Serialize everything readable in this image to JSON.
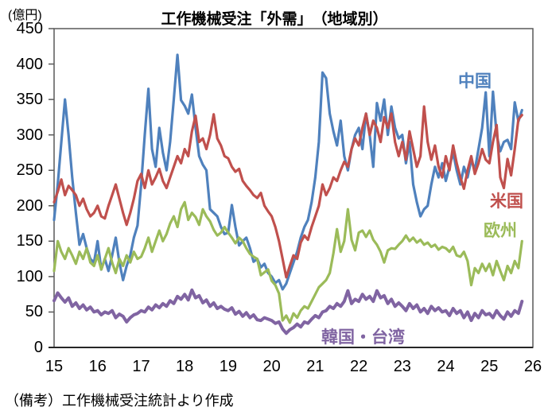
{
  "page": {
    "unit_label": "(億円)",
    "note": "（備考）工作機械受注統計より作成"
  },
  "chart_data": {
    "type": "line",
    "title": "工作機械受注「外需」　（地域別）",
    "unit": "(億円)",
    "ylim": [
      0,
      450
    ],
    "yticks": [
      0,
      50,
      100,
      150,
      200,
      250,
      300,
      350,
      400,
      450
    ],
    "x_tick_labels": [
      "15",
      "16",
      "17",
      "18",
      "19",
      "20",
      "21",
      "22",
      "23",
      "24",
      "25",
      "26"
    ],
    "x_axis_total_months": 132,
    "frequency": "monthly",
    "grid": false,
    "legend": "inline-annotations",
    "annotation_note": "（備考）工作機械受注統計より作成",
    "series": [
      {
        "name": "china",
        "label": "中国",
        "color": "#4F81BD",
        "values": [
          180,
          230,
          290,
          350,
          300,
          240,
          190,
          145,
          160,
          140,
          125,
          120,
          150,
          110,
          125,
          108,
          130,
          155,
          120,
          95,
          115,
          130,
          155,
          172,
          230,
          300,
          365,
          280,
          255,
          310,
          275,
          250,
          290,
          350,
          413,
          349,
          341,
          330,
          357,
          310,
          270,
          258,
          250,
          195,
          190,
          185,
          170,
          160,
          162,
          201,
          170,
          144,
          150,
          155,
          140,
          121,
          125,
          113,
          118,
          105,
          100,
          91,
          95,
          82,
          90,
          105,
          120,
          135,
          155,
          170,
          180,
          205,
          240,
          290,
          388,
          380,
          330,
          305,
          285,
          320,
          270,
          250,
          280,
          300,
          310,
          280,
          330,
          300,
          255,
          345,
          320,
          350,
          300,
          340,
          310,
          295,
          300,
          260,
          290,
          230,
          205,
          185,
          195,
          200,
          230,
          255,
          240,
          260,
          235,
          255,
          275,
          250,
          230,
          255,
          240,
          265,
          250,
          280,
          310,
          360,
          270,
          361,
          300,
          277,
          290,
          293,
          280,
          346,
          319,
          335
        ]
      },
      {
        "name": "usa",
        "label": "米国",
        "color": "#C0504D",
        "values": [
          205,
          220,
          237,
          215,
          228,
          222,
          215,
          200,
          210,
          195,
          185,
          190,
          200,
          185,
          182,
          200,
          215,
          230,
          210,
          190,
          173,
          190,
          210,
          235,
          245,
          225,
          250,
          230,
          240,
          252,
          235,
          225,
          240,
          255,
          270,
          260,
          280,
          270,
          305,
          327,
          290,
          295,
          280,
          300,
          329,
          295,
          285,
          270,
          267,
          255,
          248,
          252,
          235,
          228,
          222,
          215,
          211,
          218,
          200,
          192,
          185,
          170,
          150,
          125,
          99,
          115,
          130,
          125,
          148,
          158,
          152,
          170,
          185,
          200,
          230,
          215,
          225,
          240,
          235,
          250,
          262,
          255,
          280,
          295,
          285,
          310,
          330,
          300,
          320,
          310,
          290,
          325,
          310,
          330,
          290,
          270,
          290,
          265,
          305,
          280,
          255,
          270,
          340,
          290,
          265,
          285,
          255,
          240,
          270,
          250,
          285,
          260,
          240,
          224,
          250,
          270,
          245,
          260,
          280,
          265,
          260,
          290,
          314,
          240,
          225,
          266,
          243,
          280,
          322,
          328
        ]
      },
      {
        "name": "europe",
        "label": "欧州",
        "color": "#9BBB59",
        "values": [
          108,
          150,
          135,
          125,
          140,
          130,
          118,
          135,
          125,
          140,
          120,
          115,
          130,
          110,
          125,
          140,
          120,
          105,
          125,
          115,
          130,
          120,
          135,
          125,
          128,
          140,
          155,
          135,
          150,
          165,
          150,
          160,
          175,
          185,
          170,
          195,
          205,
          180,
          190,
          184,
          173,
          195,
          185,
          178,
          166,
          158,
          162,
          170,
          162,
          155,
          147,
          155,
          150,
          140,
          132,
          128,
          125,
          102,
          106,
          110,
          94,
          88,
          76,
          38,
          45,
          35,
          48,
          42,
          52,
          58,
          55,
          65,
          75,
          85,
          90,
          95,
          105,
          133,
          167,
          135,
          150,
          195,
          152,
          137,
          162,
          165,
          156,
          165,
          152,
          145,
          135,
          120,
          137,
          140,
          139,
          145,
          150,
          158,
          150,
          155,
          148,
          152,
          145,
          148,
          142,
          145,
          138,
          142,
          140,
          135,
          142,
          130,
          128,
          135,
          122,
          88,
          112,
          105,
          118,
          108,
          118,
          102,
          122,
          108,
          95,
          115,
          105,
          122,
          112,
          150
        ]
      },
      {
        "name": "korea-taiwan",
        "label": "韓国・台湾",
        "color": "#8064A2",
        "values": [
          66,
          77,
          70,
          64,
          70,
          58,
          63,
          55,
          60,
          53,
          57,
          50,
          52,
          46,
          50,
          48,
          52,
          42,
          47,
          44,
          36,
          42,
          46,
          48,
          52,
          50,
          57,
          53,
          60,
          56,
          62,
          58,
          66,
          62,
          72,
          68,
          75,
          67,
          81,
          70,
          73,
          63,
          67,
          58,
          63,
          55,
          58,
          54,
          52,
          56,
          47,
          51,
          44,
          49,
          42,
          46,
          39,
          38,
          42,
          40,
          38,
          34,
          36,
          26,
          20,
          25,
          28,
          33,
          29,
          36,
          34,
          40,
          45,
          42,
          50,
          52,
          58,
          55,
          62,
          58,
          65,
          80,
          62,
          68,
          65,
          75,
          68,
          72,
          65,
          80,
          70,
          73,
          62,
          68,
          58,
          63,
          58,
          52,
          62,
          55,
          60,
          50,
          55,
          48,
          58,
          52,
          56,
          50,
          52,
          45,
          55,
          48,
          52,
          42,
          50,
          38,
          48,
          42,
          52,
          46,
          48,
          42,
          52,
          45,
          40,
          50,
          44,
          52,
          48,
          65
        ]
      }
    ]
  }
}
